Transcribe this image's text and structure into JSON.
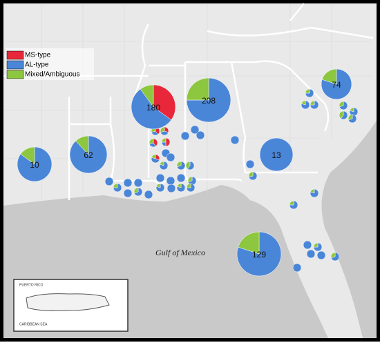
{
  "legend": [
    {
      "label": "MS-type",
      "color": "#e8283a"
    },
    {
      "label": "AL-type",
      "color": "#4a86d8"
    },
    {
      "label": "Mixed/Ambiguous",
      "color": "#8dc63f"
    }
  ],
  "water_label": "Gulf of Mexico",
  "pies": [
    {
      "label": "10",
      "values": [
        0,
        85,
        15
      ]
    },
    {
      "label": "62",
      "values": [
        0,
        88,
        12
      ]
    },
    {
      "label": "180",
      "values": [
        35,
        55,
        10
      ]
    },
    {
      "label": "208",
      "values": [
        0,
        75,
        25
      ]
    },
    {
      "label": "13",
      "values": [
        0,
        100,
        0
      ]
    },
    {
      "label": "74",
      "values": [
        0,
        80,
        20
      ]
    },
    {
      "label": "129",
      "values": [
        0,
        80,
        20
      ]
    }
  ],
  "small_pies": [
    {
      "values": [
        40,
        30,
        30
      ]
    },
    {
      "values": [
        30,
        40,
        30
      ]
    },
    {
      "values": [
        50,
        25,
        25
      ]
    },
    {
      "values": [
        40,
        30,
        30
      ]
    },
    {
      "values": [
        0,
        100,
        0
      ]
    },
    {
      "values": [
        30,
        50,
        20
      ]
    },
    {
      "values": [
        0,
        80,
        20
      ]
    },
    {
      "values": [
        0,
        100,
        0
      ]
    },
    {
      "values": [
        0,
        100,
        0
      ]
    },
    {
      "values": [
        0,
        75,
        25
      ]
    },
    {
      "values": [
        0,
        100,
        0
      ]
    },
    {
      "values": [
        0,
        100,
        0
      ]
    },
    {
      "values": [
        0,
        100,
        0
      ]
    },
    {
      "values": [
        0,
        70,
        30
      ]
    },
    {
      "values": [
        0,
        100,
        0
      ]
    },
    {
      "values": [
        0,
        100,
        0
      ]
    },
    {
      "values": [
        0,
        100,
        0
      ]
    },
    {
      "values": [
        0,
        80,
        20
      ]
    },
    {
      "values": [
        0,
        100,
        0
      ]
    },
    {
      "values": [
        0,
        70,
        30
      ]
    },
    {
      "values": [
        0,
        60,
        40
      ]
    },
    {
      "values": [
        0,
        100,
        0
      ]
    },
    {
      "values": [
        0,
        70,
        30
      ]
    },
    {
      "values": [
        0,
        80,
        20
      ]
    },
    {
      "values": [
        0,
        75,
        25
      ]
    },
    {
      "values": [
        0,
        100,
        0
      ]
    },
    {
      "values": [
        0,
        100,
        0
      ]
    },
    {
      "values": [
        0,
        100,
        0
      ]
    },
    {
      "values": [
        0,
        100,
        0
      ]
    },
    {
      "values": [
        0,
        100,
        0
      ]
    },
    {
      "values": [
        0,
        70,
        30
      ]
    },
    {
      "values": [
        0,
        75,
        25
      ]
    },
    {
      "values": [
        0,
        80,
        20
      ]
    },
    {
      "values": [
        0,
        75,
        25
      ]
    },
    {
      "values": [
        0,
        70,
        30
      ]
    },
    {
      "values": [
        0,
        80,
        20
      ]
    },
    {
      "values": [
        0,
        60,
        40
      ]
    },
    {
      "values": [
        0,
        70,
        30
      ]
    },
    {
      "values": [
        0,
        80,
        20
      ]
    },
    {
      "values": [
        0,
        75,
        25
      ]
    },
    {
      "values": [
        0,
        100,
        0
      ]
    },
    {
      "values": [
        0,
        75,
        25
      ]
    },
    {
      "values": [
        0,
        100,
        0
      ]
    },
    {
      "values": [
        0,
        100,
        0
      ]
    },
    {
      "values": [
        0,
        70,
        30
      ]
    },
    {
      "values": [
        0,
        100,
        0
      ]
    }
  ],
  "inset": {
    "title": "PUERTO RICO",
    "sea": "CARIBBEAN SEA"
  }
}
